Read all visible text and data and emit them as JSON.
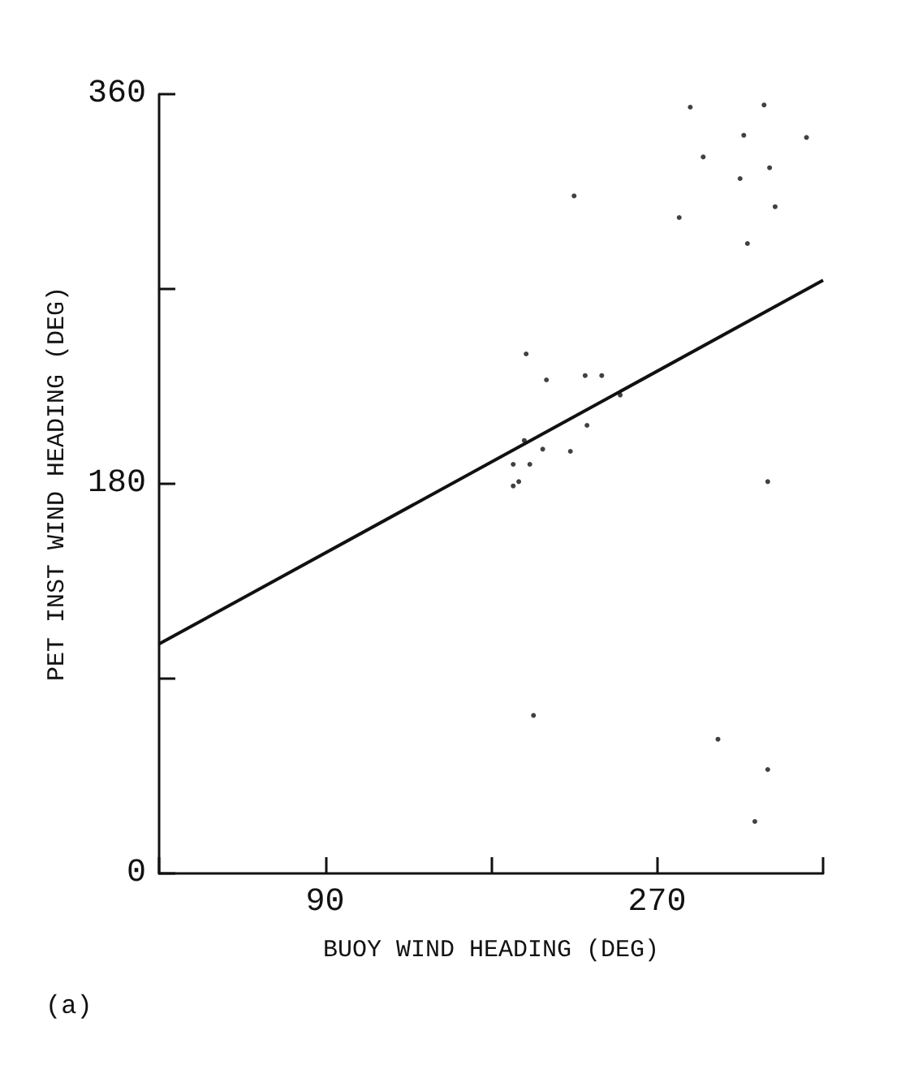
{
  "chart_data": {
    "type": "scatter",
    "xlabel": "BUOY WIND HEADING (DEG)",
    "ylabel": "PET INST WIND HEADING (DEG)",
    "annotations": [
      "(a)"
    ],
    "xlim": [
      0,
      360
    ],
    "xticks": [
      {
        "value": 0,
        "label": null
      },
      90,
      {
        "value": 180,
        "label": null
      },
      270,
      {
        "value": 360,
        "label": null
      }
    ],
    "ylim": [
      0,
      360
    ],
    "yticks": [
      0,
      {
        "value": 90,
        "label": null
      },
      180,
      {
        "value": 270,
        "label": null
      },
      360
    ],
    "series": [
      {
        "type": "scatter",
        "color": "#111111",
        "marker": "circle",
        "x": [
          351,
          328,
          331,
          334,
          317,
          315,
          319,
          288,
          295,
          282,
          330,
          330,
          323,
          303,
          203,
          225,
          250,
          240,
          231,
          232,
          223,
          210,
          208,
          199,
          198,
          201,
          192,
          195,
          192
        ],
        "values": [
          340,
          355,
          326,
          308,
          341,
          321,
          291,
          354,
          331,
          303,
          181,
          48,
          24,
          62,
          73,
          313,
          221,
          230,
          230,
          207,
          195,
          228,
          196,
          240,
          200,
          189,
          189,
          181,
          179
        ]
      },
      {
        "type": "line",
        "color": "#111111",
        "marker": "none",
        "line_style": "solid",
        "x": [
          0,
          360
        ],
        "values": [
          106,
          274
        ]
      }
    ]
  }
}
